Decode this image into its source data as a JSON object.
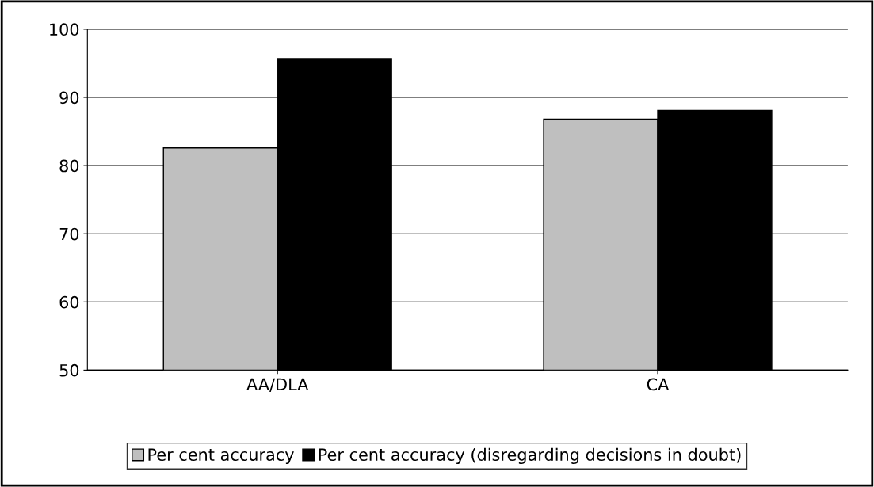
{
  "chart_data": {
    "type": "bar",
    "categories": [
      "AA/DLA",
      "CA"
    ],
    "series": [
      {
        "name": "Per cent accuracy",
        "color": "#bfbfbf",
        "values": [
          82.6,
          86.8
        ]
      },
      {
        "name": "Per cent accuracy (disregarding decisions in doubt)",
        "color": "#000000",
        "values": [
          95.7,
          88.1
        ]
      }
    ],
    "ylim": [
      50,
      100
    ],
    "yticks": [
      50,
      60,
      70,
      80,
      90,
      100
    ],
    "grid": "y",
    "legend": "bottom"
  }
}
